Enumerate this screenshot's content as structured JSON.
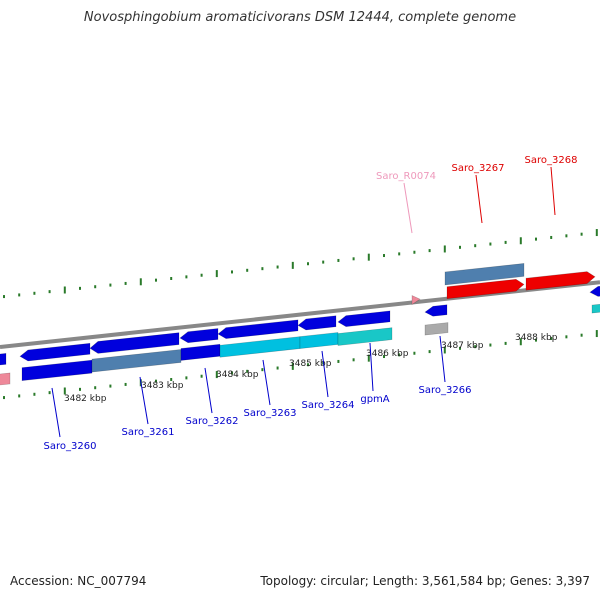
{
  "title": "Novosphingobium aromaticivorans DSM 12444, complete genome",
  "footer": {
    "accession": "Accession: NC_007794",
    "summary": "Topology: circular; Length: 3,561,584 bp; Genes: 3,397"
  },
  "colors": {
    "blue": "#0000dd",
    "steel": "#4f7fae",
    "cyan": "#00c0e0",
    "cyan2": "#19c7c7",
    "red": "#ee0000",
    "pink": "#ee8899",
    "gray": "#aaaaaa",
    "backbone": "#888888",
    "tick": "#2a7a2a",
    "label_blue": "#0000cc",
    "label_red": "#dd0000",
    "label_pink": "#ee99bb"
  },
  "scale_labels": [
    "3482 kbp",
    "3483 kbp",
    "3484 kbp",
    "3485 kbp",
    "3486 kbp",
    "3487 kbp",
    "3488 kbp"
  ],
  "gene_labels": [
    {
      "text": "Saro_3260",
      "color": "label_blue"
    },
    {
      "text": "Saro_3261",
      "color": "label_blue"
    },
    {
      "text": "Saro_3262",
      "color": "label_blue"
    },
    {
      "text": "Saro_3263",
      "color": "label_blue"
    },
    {
      "text": "Saro_3264",
      "color": "label_blue"
    },
    {
      "text": "gpmA",
      "color": "label_blue"
    },
    {
      "text": "Saro_3266",
      "color": "label_blue"
    },
    {
      "text": "Saro_R0074",
      "color": "label_pink"
    },
    {
      "text": "Saro_3267",
      "color": "label_red"
    },
    {
      "text": "Saro_3268",
      "color": "label_red"
    }
  ]
}
